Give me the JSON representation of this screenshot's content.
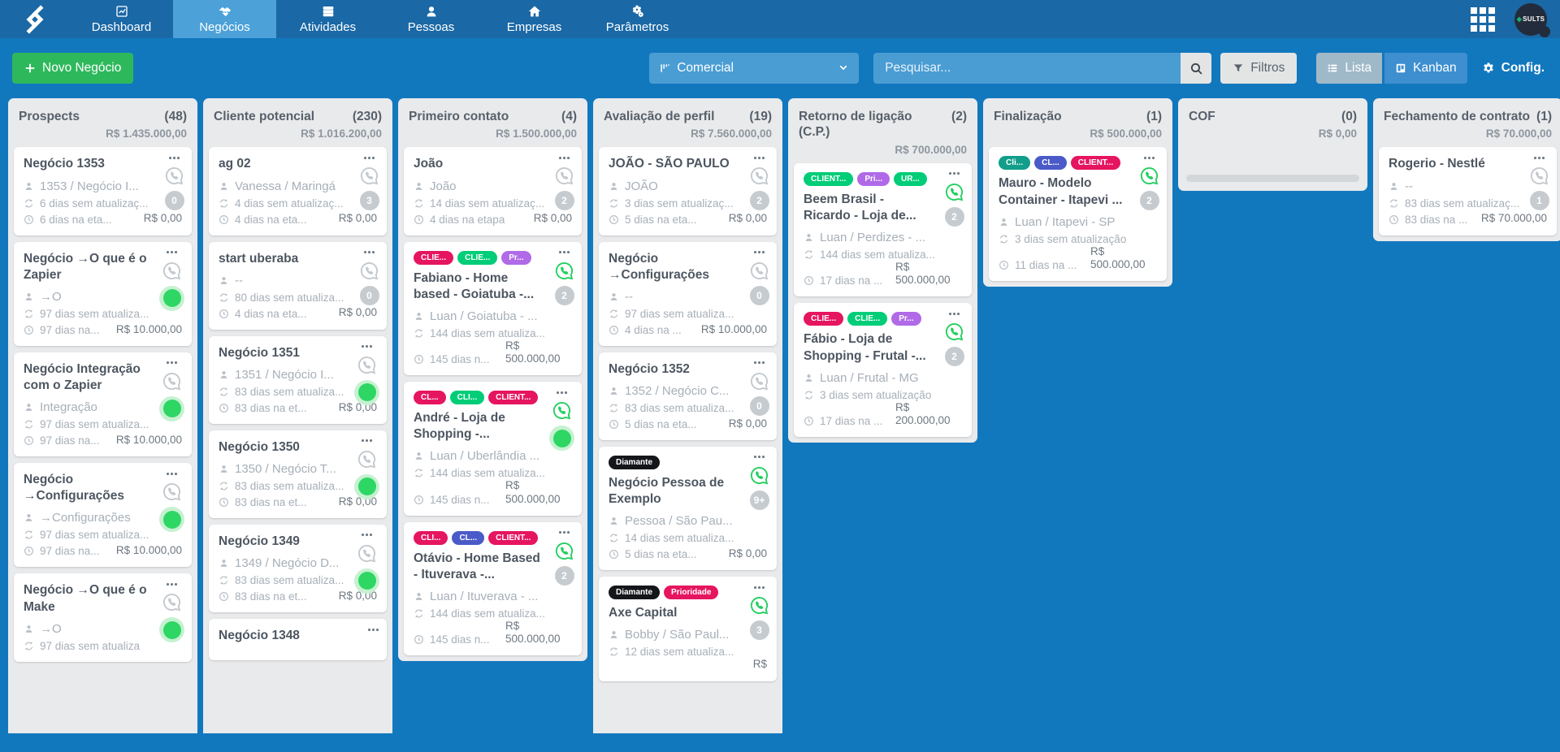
{
  "nav": {
    "items": [
      {
        "label": "Dashboard",
        "icon": "chart-icon",
        "active": false
      },
      {
        "label": "Negócios",
        "icon": "handshake-icon",
        "active": true
      },
      {
        "label": "Atividades",
        "icon": "activities-icon",
        "active": false
      },
      {
        "label": "Pessoas",
        "icon": "person-icon",
        "active": false
      },
      {
        "label": "Empresas",
        "icon": "building-icon",
        "active": false
      },
      {
        "label": "Parâmetros",
        "icon": "gears-icon",
        "active": false
      }
    ],
    "account_label": "SULTS"
  },
  "toolbar": {
    "new_deal_label": "Novo Negócio",
    "pipeline_selected": "Comercial",
    "search_placeholder": "Pesquisar...",
    "filters_label": "Filtros",
    "list_label": "Lista",
    "kanban_label": "Kanban",
    "config_label": "Config."
  },
  "colors": {
    "navbar": "#1a68a6",
    "nav_active": "#4ba1d8",
    "page_blue": "#1278be",
    "green_button": "#2eb85c",
    "whatsapp_green": "#22cf5f",
    "green_dot": "#2ed664"
  },
  "board": {
    "columns": [
      {
        "title": "Prospects",
        "count": "(48)",
        "total": "R$ 1.435.000,00",
        "cards": [
          {
            "title": "Negócio 1353",
            "person": "1353 / Negócio I...",
            "updated": "6 dias sem atualizaç...",
            "stage": "6 dias na eta...",
            "value": "R$ 0,00",
            "whatsapp": "gray",
            "badge": {
              "type": "count",
              "value": "0"
            },
            "tags": []
          },
          {
            "title": "Negócio →O que é o Zapier",
            "person": "→O",
            "updated": "97 dias sem atualiza...",
            "stage": "97 dias na...",
            "value": "R$ 10.000,00",
            "whatsapp": "gray",
            "badge": {
              "type": "dot"
            },
            "tags": []
          },
          {
            "title": "Negócio Integração com o Zapier",
            "person": "Integração",
            "updated": "97 dias sem atualiza...",
            "stage": "97 dias na...",
            "value": "R$ 10.000,00",
            "whatsapp": "gray",
            "badge": {
              "type": "dot"
            },
            "tags": []
          },
          {
            "title": "Negócio →Configurações",
            "person": "→Configurações",
            "updated": "97 dias sem atualiza...",
            "stage": "97 dias na...",
            "value": "R$ 10.000,00",
            "whatsapp": "gray",
            "badge": {
              "type": "dot"
            },
            "tags": []
          },
          {
            "title": "Negócio →O que é o Make",
            "person": "→O",
            "updated": "97 dias sem atualiza",
            "stage": "",
            "value": "",
            "whatsapp": "gray",
            "badge": {
              "type": "dot"
            },
            "tags": []
          }
        ]
      },
      {
        "title": "Cliente potencial",
        "count": "(230)",
        "total": "R$ 1.016.200,00",
        "cards": [
          {
            "title": "ag 02",
            "person": "Vanessa / Maringá",
            "updated": "4 dias sem atualizaç...",
            "stage": "4 dias na eta...",
            "value": "R$ 0,00",
            "whatsapp": "gray",
            "badge": {
              "type": "count",
              "value": "3"
            },
            "tags": []
          },
          {
            "title": "start uberaba",
            "person": "--",
            "updated": "80 dias sem atualiza...",
            "stage": "4 dias na eta...",
            "value": "R$ 0,00",
            "whatsapp": "gray",
            "badge": {
              "type": "count",
              "value": "0"
            },
            "tags": []
          },
          {
            "title": "Negócio 1351",
            "person": "1351 / Negócio I...",
            "updated": "83 dias sem atualiza...",
            "stage": "83 dias na et...",
            "value": "R$ 0,00",
            "whatsapp": "gray",
            "badge": {
              "type": "dot"
            },
            "tags": []
          },
          {
            "title": "Negócio 1350",
            "person": "1350 / Negócio T...",
            "updated": "83 dias sem atualiza...",
            "stage": "83 dias na et...",
            "value": "R$ 0,00",
            "whatsapp": "gray",
            "badge": {
              "type": "dot"
            },
            "tags": []
          },
          {
            "title": "Negócio 1349",
            "person": "1349 / Negócio D...",
            "updated": "83 dias sem atualiza...",
            "stage": "83 dias na et...",
            "value": "R$ 0,00",
            "whatsapp": "gray",
            "badge": {
              "type": "dot"
            },
            "tags": []
          },
          {
            "title": "Negócio 1348",
            "person": "",
            "updated": "",
            "stage": "",
            "value": "",
            "whatsapp": null,
            "badge": null,
            "tags": []
          }
        ]
      },
      {
        "title": "Primeiro contato",
        "count": "(4)",
        "total": "R$ 1.500.000,00",
        "cards": [
          {
            "title": "João",
            "person": "João",
            "updated": "14 dias sem atualizaç...",
            "stage": "4 dias na etapa",
            "value": "R$ 0,00",
            "whatsapp": "gray",
            "badge": {
              "type": "count",
              "value": "2"
            },
            "tags": []
          },
          {
            "title": "Fabiano - Home based - Goiatuba -...",
            "person": "Luan / Goiatuba - ...",
            "updated": "144 dias sem atualiza...",
            "stage": "145 dias n...",
            "value": "R$ 500.000,00",
            "whatsapp": "green",
            "badge": {
              "type": "count",
              "value": "2"
            },
            "tags": [
              {
                "label": "CLIE...",
                "color": "#e6155f"
              },
              {
                "label": "CLIE...",
                "color": "#00cd78"
              },
              {
                "label": "Pr...",
                "color": "#b06ae8"
              }
            ]
          },
          {
            "title": "André - Loja de Shopping -...",
            "person": "Luan / Uberlândia ...",
            "updated": "144 dias sem atualiza...",
            "stage": "145 dias n...",
            "value": "R$ 500.000,00",
            "whatsapp": "green",
            "badge": {
              "type": "dot"
            },
            "tags": [
              {
                "label": "CL...",
                "color": "#e6155f"
              },
              {
                "label": "CLI...",
                "color": "#00cd78"
              },
              {
                "label": "CLIENT...",
                "color": "#e6155f"
              }
            ]
          },
          {
            "title": "Otávio - Home Based - Ituverava -...",
            "person": "Luan / Ituverava - ...",
            "updated": "144 dias sem atualiza...",
            "stage": "145 dias n...",
            "value": "R$ 500.000,00",
            "whatsapp": "green",
            "badge": {
              "type": "count",
              "value": "2"
            },
            "tags": [
              {
                "label": "CLI...",
                "color": "#e6155f"
              },
              {
                "label": "CL...",
                "color": "#4a5ac8"
              },
              {
                "label": "CLIENT...",
                "color": "#e6155f"
              }
            ]
          }
        ]
      },
      {
        "title": "Avaliação de perfil",
        "count": "(19)",
        "total": "R$ 7.560.000,00",
        "cards": [
          {
            "title": "JOÃO - SÃO PAULO",
            "person": "JOÃO",
            "updated": "3 dias sem atualizaç...",
            "stage": "5 dias na eta...",
            "value": "R$ 0,00",
            "whatsapp": "gray",
            "badge": {
              "type": "count",
              "value": "2"
            },
            "tags": []
          },
          {
            "title": "Negócio →Configurações",
            "person": "--",
            "updated": "97 dias sem atualiza...",
            "stage": "4 dias na ...",
            "value": "R$ 10.000,00",
            "whatsapp": "gray",
            "badge": {
              "type": "count",
              "value": "0"
            },
            "tags": []
          },
          {
            "title": "Negócio 1352",
            "person": "1352 / Negócio C...",
            "updated": "83 dias sem atualiza...",
            "stage": "5 dias na eta...",
            "value": "R$ 0,00",
            "whatsapp": "gray",
            "badge": {
              "type": "count",
              "value": "0"
            },
            "tags": []
          },
          {
            "title": "Negócio Pessoa de Exemplo",
            "person": "Pessoa / São Pau...",
            "updated": "14 dias sem atualiza...",
            "stage": "5 dias na eta...",
            "value": "R$ 0,00",
            "whatsapp": "green",
            "badge": {
              "type": "count",
              "value": "9+"
            },
            "tags": [
              {
                "label": "Diamante",
                "color": "#15161a"
              }
            ]
          },
          {
            "title": "Axe Capital",
            "person": "Bobby / São Paul...",
            "updated": "12 dias sem atualiza...",
            "stage": "",
            "value": "R$",
            "whatsapp": "green",
            "badge": {
              "type": "count",
              "value": "3"
            },
            "tags": [
              {
                "label": "Diamante",
                "color": "#15161a"
              },
              {
                "label": "Prioridade",
                "color": "#e6155f"
              }
            ]
          }
        ]
      },
      {
        "title": "Retorno de ligação (C.P.)",
        "count": "(2)",
        "total": "R$ 700.000,00",
        "cards": [
          {
            "title": "Beem Brasil - Ricardo - Loja de...",
            "person": "Luan / Perdizes - ...",
            "updated": "144 dias sem atualiza...",
            "stage": "17 dias na ...",
            "value": "R$ 500.000,00",
            "whatsapp": "green",
            "badge": {
              "type": "count",
              "value": "2"
            },
            "tags": [
              {
                "label": "CLIENT...",
                "color": "#00cd78"
              },
              {
                "label": "Pri...",
                "color": "#b06ae8"
              },
              {
                "label": "UR...",
                "color": "#00cd78"
              }
            ]
          },
          {
            "title": "Fábio - Loja de Shopping - Frutal -...",
            "person": "Luan / Frutal - MG",
            "updated": "3 dias sem atualização",
            "stage": "17 dias na ...",
            "value": "R$ 200.000,00",
            "whatsapp": "green",
            "badge": {
              "type": "count",
              "value": "2"
            },
            "tags": [
              {
                "label": "CLIE...",
                "color": "#e6155f"
              },
              {
                "label": "CLIE...",
                "color": "#00cd78"
              },
              {
                "label": "Pr...",
                "color": "#b06ae8"
              }
            ]
          }
        ]
      },
      {
        "title": "Finalização",
        "count": "(1)",
        "total": "R$ 500.000,00",
        "cards": [
          {
            "title": "Mauro - Modelo Container - Itapevi ...",
            "person": "Luan / Itapevi - SP",
            "updated": "3 dias sem atualização",
            "stage": "11 dias na ...",
            "value": "R$ 500.000,00",
            "whatsapp": "green",
            "badge": {
              "type": "count",
              "value": "2"
            },
            "tags": [
              {
                "label": "Cli...",
                "color": "#119e8a"
              },
              {
                "label": "CL...",
                "color": "#4a5ac8"
              },
              {
                "label": "CLIENT...",
                "color": "#e6155f"
              }
            ]
          }
        ]
      },
      {
        "title": "COF",
        "count": "(0)",
        "total": "R$ 0,00",
        "cards": [],
        "scrollbar": true
      },
      {
        "title": "Fechamento de contrato",
        "count": "(1)",
        "total": "R$ 70.000,00",
        "cards": [
          {
            "title": "Rogerio - Nestlé",
            "person": "--",
            "updated": "83 dias sem atualizaç...",
            "stage": "83 dias na ...",
            "value": "R$ 70.000,00",
            "whatsapp": "gray",
            "badge": {
              "type": "count",
              "value": "1"
            },
            "tags": []
          }
        ]
      }
    ]
  }
}
